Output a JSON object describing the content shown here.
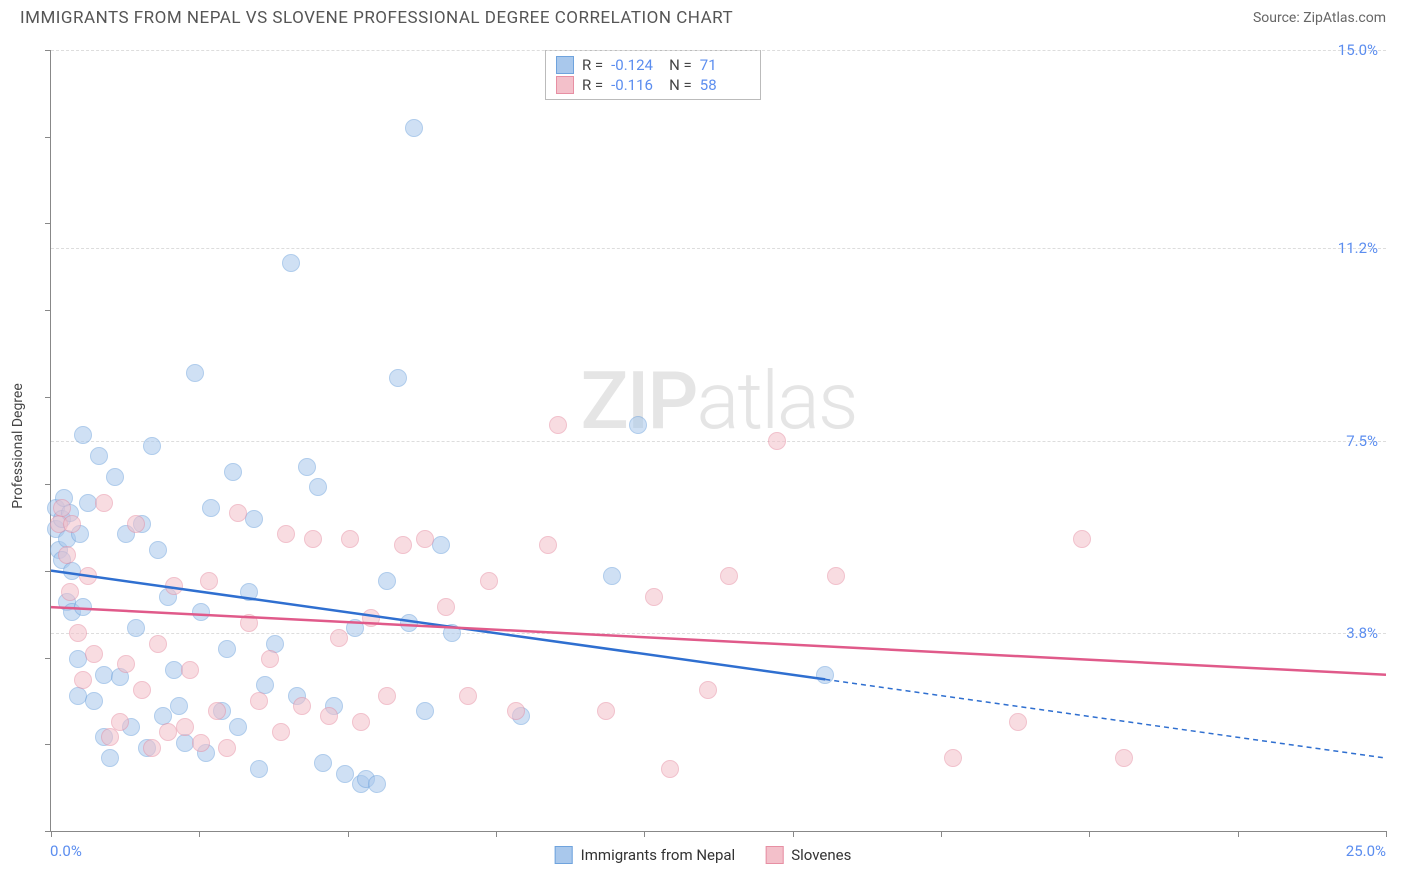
{
  "title": "IMMIGRANTS FROM NEPAL VS SLOVENE PROFESSIONAL DEGREE CORRELATION CHART",
  "source_label": "Source: ",
  "source_name": "ZipAtlas.com",
  "watermark": {
    "bold": "ZIP",
    "light": "atlas"
  },
  "y_axis_title": "Professional Degree",
  "chart": {
    "type": "scatter",
    "xlim": [
      0,
      25
    ],
    "ylim": [
      0,
      15
    ],
    "x_min_label": "0.0%",
    "x_max_label": "25.0%",
    "y_ticks": [
      {
        "v": 3.8,
        "label": "3.8%"
      },
      {
        "v": 7.5,
        "label": "7.5%"
      },
      {
        "v": 11.2,
        "label": "11.2%"
      },
      {
        "v": 15.0,
        "label": "15.0%"
      }
    ],
    "x_tick_positions": [
      0,
      2.78,
      5.56,
      8.33,
      11.11,
      13.89,
      16.67,
      19.44,
      22.22,
      25
    ],
    "y_tick_positions": [
      0,
      1.67,
      3.33,
      5,
      6.67,
      8.33,
      10,
      11.67,
      13.33,
      15
    ],
    "background_color": "#ffffff",
    "grid_color": "#dddddd",
    "point_radius": 9,
    "point_opacity": 0.55,
    "series": [
      {
        "id": "nepal",
        "label": "Immigrants from Nepal",
        "fill": "#a9c8ec",
        "stroke": "#6fa3dd",
        "line_color": "#2f6fd0",
        "r_value": "-0.124",
        "n_value": "71",
        "trend": {
          "y_at_x0": 5.0,
          "y_at_xmax": 1.4,
          "solid_until_x": 14.5
        },
        "points": [
          [
            0.1,
            5.8
          ],
          [
            0.1,
            6.2
          ],
          [
            0.15,
            5.4
          ],
          [
            0.2,
            6.0
          ],
          [
            0.2,
            5.2
          ],
          [
            0.25,
            6.4
          ],
          [
            0.3,
            5.6
          ],
          [
            0.3,
            4.4
          ],
          [
            0.35,
            6.1
          ],
          [
            0.4,
            5.0
          ],
          [
            0.4,
            4.2
          ],
          [
            0.5,
            3.3
          ],
          [
            0.5,
            2.6
          ],
          [
            0.55,
            5.7
          ],
          [
            0.6,
            7.6
          ],
          [
            0.6,
            4.3
          ],
          [
            0.7,
            6.3
          ],
          [
            0.8,
            2.5
          ],
          [
            0.9,
            7.2
          ],
          [
            1.0,
            1.8
          ],
          [
            1.0,
            3.0
          ],
          [
            1.1,
            1.4
          ],
          [
            1.2,
            6.8
          ],
          [
            1.3,
            2.95
          ],
          [
            1.4,
            5.7
          ],
          [
            1.5,
            2.0
          ],
          [
            1.6,
            3.9
          ],
          [
            1.7,
            5.9
          ],
          [
            1.8,
            1.6
          ],
          [
            1.9,
            7.4
          ],
          [
            2.0,
            5.4
          ],
          [
            2.1,
            2.2
          ],
          [
            2.2,
            4.5
          ],
          [
            2.3,
            3.1
          ],
          [
            2.4,
            2.4
          ],
          [
            2.5,
            1.7
          ],
          [
            2.7,
            8.8
          ],
          [
            2.8,
            4.2
          ],
          [
            2.9,
            1.5
          ],
          [
            3.0,
            6.2
          ],
          [
            3.2,
            2.3
          ],
          [
            3.3,
            3.5
          ],
          [
            3.4,
            6.9
          ],
          [
            3.5,
            2.0
          ],
          [
            3.7,
            4.6
          ],
          [
            3.8,
            6.0
          ],
          [
            3.9,
            1.2
          ],
          [
            4.0,
            2.8
          ],
          [
            4.2,
            3.6
          ],
          [
            4.5,
            10.9
          ],
          [
            4.6,
            2.6
          ],
          [
            4.8,
            7.0
          ],
          [
            5.0,
            6.6
          ],
          [
            5.1,
            1.3
          ],
          [
            5.3,
            2.4
          ],
          [
            5.5,
            1.1
          ],
          [
            5.7,
            3.9
          ],
          [
            5.8,
            0.9
          ],
          [
            5.9,
            1.0
          ],
          [
            6.1,
            0.9
          ],
          [
            6.3,
            4.8
          ],
          [
            6.5,
            8.7
          ],
          [
            6.7,
            4.0
          ],
          [
            6.8,
            13.5
          ],
          [
            7.0,
            2.3
          ],
          [
            7.3,
            5.5
          ],
          [
            7.5,
            3.8
          ],
          [
            8.8,
            2.2
          ],
          [
            10.5,
            4.9
          ],
          [
            11.0,
            7.8
          ],
          [
            14.5,
            3.0
          ]
        ]
      },
      {
        "id": "slovenes",
        "label": "Slovenes",
        "fill": "#f3c0ca",
        "stroke": "#e78fa3",
        "line_color": "#e05a8a",
        "r_value": "-0.116",
        "n_value": "58",
        "trend": {
          "y_at_x0": 4.3,
          "y_at_xmax": 3.0,
          "solid_until_x": 25
        },
        "points": [
          [
            0.15,
            5.9
          ],
          [
            0.2,
            6.2
          ],
          [
            0.3,
            5.3
          ],
          [
            0.35,
            4.6
          ],
          [
            0.4,
            5.9
          ],
          [
            0.5,
            3.8
          ],
          [
            0.6,
            2.9
          ],
          [
            0.7,
            4.9
          ],
          [
            0.8,
            3.4
          ],
          [
            1.0,
            6.3
          ],
          [
            1.1,
            1.8
          ],
          [
            1.3,
            2.1
          ],
          [
            1.4,
            3.2
          ],
          [
            1.6,
            5.9
          ],
          [
            1.7,
            2.7
          ],
          [
            1.9,
            1.6
          ],
          [
            2.0,
            3.6
          ],
          [
            2.2,
            1.9
          ],
          [
            2.3,
            4.7
          ],
          [
            2.5,
            2.0
          ],
          [
            2.6,
            3.1
          ],
          [
            2.8,
            1.7
          ],
          [
            2.95,
            4.8
          ],
          [
            3.1,
            2.3
          ],
          [
            3.3,
            1.6
          ],
          [
            3.5,
            6.1
          ],
          [
            3.7,
            4.0
          ],
          [
            3.9,
            2.5
          ],
          [
            4.1,
            3.3
          ],
          [
            4.3,
            1.9
          ],
          [
            4.4,
            5.7
          ],
          [
            4.7,
            2.4
          ],
          [
            4.9,
            5.6
          ],
          [
            5.2,
            2.2
          ],
          [
            5.4,
            3.7
          ],
          [
            5.6,
            5.6
          ],
          [
            5.8,
            2.1
          ],
          [
            6.0,
            4.1
          ],
          [
            6.3,
            2.6
          ],
          [
            6.6,
            5.5
          ],
          [
            7.0,
            5.6
          ],
          [
            7.4,
            4.3
          ],
          [
            7.8,
            2.6
          ],
          [
            8.2,
            4.8
          ],
          [
            8.7,
            2.3
          ],
          [
            9.3,
            5.5
          ],
          [
            9.5,
            7.8
          ],
          [
            10.4,
            2.3
          ],
          [
            11.3,
            4.5
          ],
          [
            11.6,
            1.2
          ],
          [
            12.3,
            2.7
          ],
          [
            12.7,
            4.9
          ],
          [
            13.6,
            7.5
          ],
          [
            14.7,
            4.9
          ],
          [
            16.9,
            1.4
          ],
          [
            18.1,
            2.1
          ],
          [
            19.3,
            5.6
          ],
          [
            20.1,
            1.4
          ]
        ]
      }
    ]
  },
  "stats_box": {
    "r_label": "R =",
    "n_label": "N ="
  }
}
